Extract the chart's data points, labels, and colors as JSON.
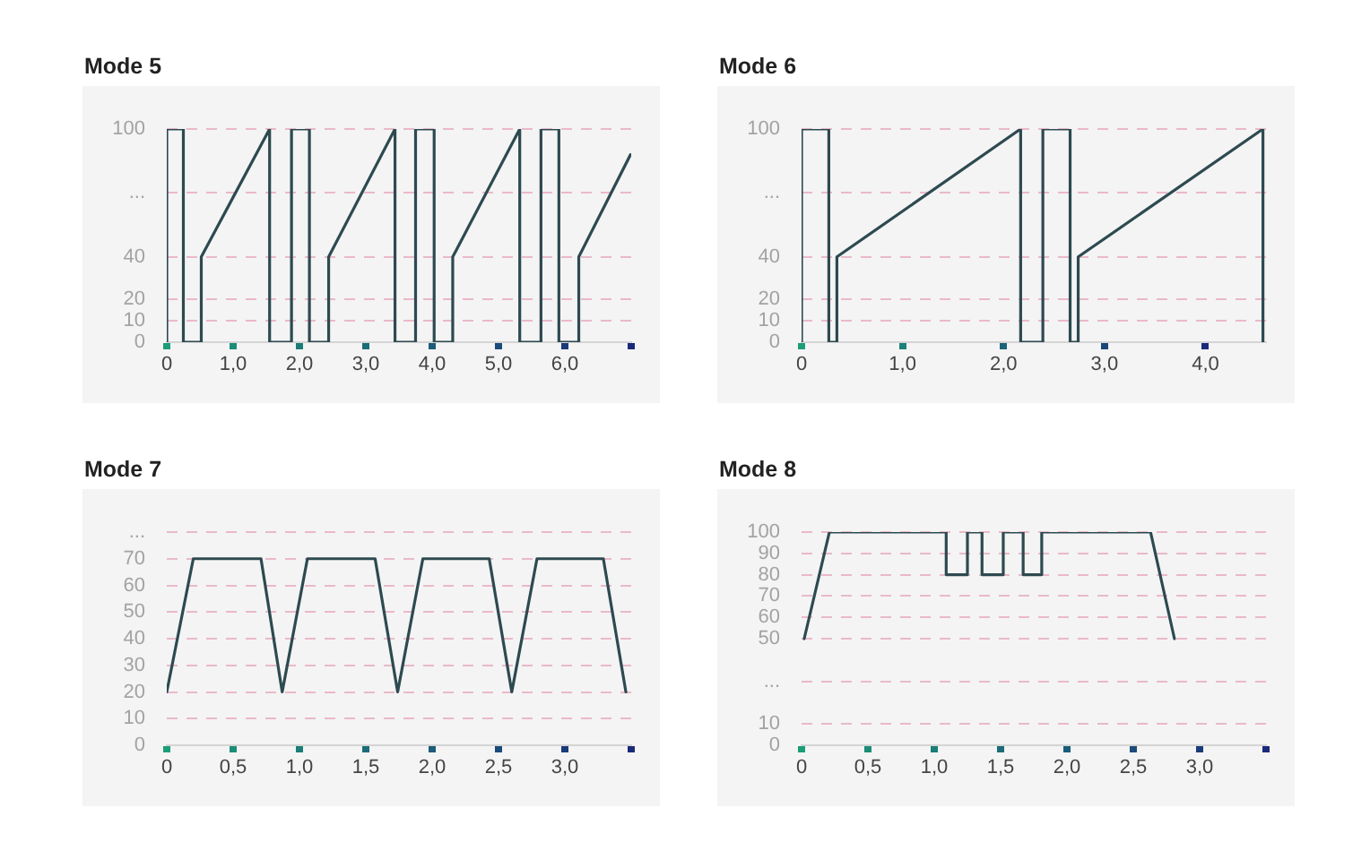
{
  "chart_data": [
    {
      "type": "line",
      "title": "Mode 5",
      "x": [
        0,
        0,
        0.25,
        0.25,
        0.52,
        0.52,
        1.55,
        1.55,
        1.88,
        1.88,
        2.15,
        2.15,
        2.44,
        2.44,
        3.44,
        3.44,
        3.75,
        3.75,
        4.03,
        4.03,
        4.31,
        4.31,
        5.32,
        5.32,
        5.64,
        5.64,
        5.91,
        5.91,
        6.21,
        6.21,
        6.99
      ],
      "series": [
        {
          "color": "#2d4a50",
          "values": [
            0,
            100,
            100,
            0,
            0,
            40,
            100,
            0,
            0,
            100,
            100,
            0,
            0,
            40,
            100,
            0,
            0,
            100,
            100,
            0,
            0,
            40,
            100,
            0,
            0,
            100,
            100,
            0,
            0,
            40,
            88
          ]
        }
      ],
      "xlim": [
        0,
        7
      ],
      "xticks": [
        {
          "value": 0,
          "label": "0"
        },
        {
          "value": 1,
          "label": "1,0"
        },
        {
          "value": 2,
          "label": "2,0"
        },
        {
          "value": 3,
          "label": "3,0"
        },
        {
          "value": 4,
          "label": "4,0"
        },
        {
          "value": 5,
          "label": "5,0"
        },
        {
          "value": 6,
          "label": "6,0"
        },
        {
          "value": 7,
          "label": null
        }
      ],
      "ylim": [
        0,
        100
      ],
      "yticks": [
        0,
        10,
        20,
        40,
        {
          "value": 70,
          "label": "..."
        },
        100
      ],
      "grid": "y"
    },
    {
      "type": "line",
      "title": "Mode 6",
      "x": [
        0,
        0,
        0.27,
        0.27,
        0.35,
        0.35,
        2.17,
        2.17,
        2.39,
        2.39,
        2.66,
        2.66,
        2.74,
        2.74,
        4.57,
        4.57
      ],
      "series": [
        {
          "color": "#2d4a50",
          "values": [
            0,
            100,
            100,
            0,
            0,
            40,
            100,
            0,
            0,
            100,
            100,
            0,
            0,
            40,
            100,
            0
          ]
        }
      ],
      "xlim": [
        0,
        4.6
      ],
      "xticks": [
        {
          "value": 0,
          "label": "0"
        },
        {
          "value": 1,
          "label": "1,0"
        },
        {
          "value": 2,
          "label": "2,0"
        },
        {
          "value": 3,
          "label": "3,0"
        },
        {
          "value": 4,
          "label": "4,0"
        }
      ],
      "ylim": [
        0,
        100
      ],
      "yticks": [
        0,
        10,
        20,
        40,
        {
          "value": 70,
          "label": "..."
        },
        100
      ],
      "grid": "y"
    },
    {
      "type": "line",
      "title": "Mode 7",
      "x": [
        0,
        0.2,
        0.71,
        0.87,
        1.06,
        1.57,
        1.74,
        1.93,
        2.43,
        2.6,
        2.79,
        3.29,
        3.46
      ],
      "series": [
        {
          "color": "#2d4a50",
          "values": [
            20,
            70,
            70,
            20,
            70,
            70,
            20,
            70,
            70,
            20,
            70,
            70,
            20
          ]
        }
      ],
      "xlim": [
        0,
        3.5
      ],
      "xticks": [
        {
          "value": 0,
          "label": "0"
        },
        {
          "value": 0.5,
          "label": "0,5"
        },
        {
          "value": 1,
          "label": "1,0"
        },
        {
          "value": 1.5,
          "label": "1,5"
        },
        {
          "value": 2,
          "label": "2,0"
        },
        {
          "value": 2.5,
          "label": "2,5"
        },
        {
          "value": 3,
          "label": "3,0"
        },
        {
          "value": 3.5,
          "label": null
        }
      ],
      "ylim": [
        0,
        80
      ],
      "yticks": [
        0,
        10,
        20,
        30,
        40,
        50,
        60,
        70,
        {
          "value": 80,
          "label": "..."
        }
      ],
      "grid": "y"
    },
    {
      "type": "line",
      "title": "Mode 8",
      "x": [
        0.02,
        0.21,
        1.09,
        1.09,
        1.25,
        1.25,
        1.36,
        1.36,
        1.52,
        1.52,
        1.67,
        1.67,
        1.81,
        1.81,
        2.63,
        2.81
      ],
      "series": [
        {
          "color": "#2d4a50",
          "values": [
            50,
            100,
            100,
            80,
            80,
            100,
            100,
            80,
            80,
            100,
            100,
            80,
            80,
            100,
            100,
            50
          ]
        }
      ],
      "xlim": [
        0,
        3.5
      ],
      "xticks": [
        {
          "value": 0,
          "label": "0"
        },
        {
          "value": 0.5,
          "label": "0,5"
        },
        {
          "value": 1,
          "label": "1,0"
        },
        {
          "value": 1.5,
          "label": "1,5"
        },
        {
          "value": 2,
          "label": "2,0"
        },
        {
          "value": 2.5,
          "label": "2,5"
        },
        {
          "value": 3,
          "label": "3,0"
        },
        {
          "value": 3.5,
          "label": null
        }
      ],
      "ylim": [
        0,
        100
      ],
      "yticks": [
        0,
        10,
        {
          "value": 30,
          "label": "..."
        },
        50,
        60,
        70,
        80,
        90,
        100
      ],
      "grid": "y"
    }
  ]
}
